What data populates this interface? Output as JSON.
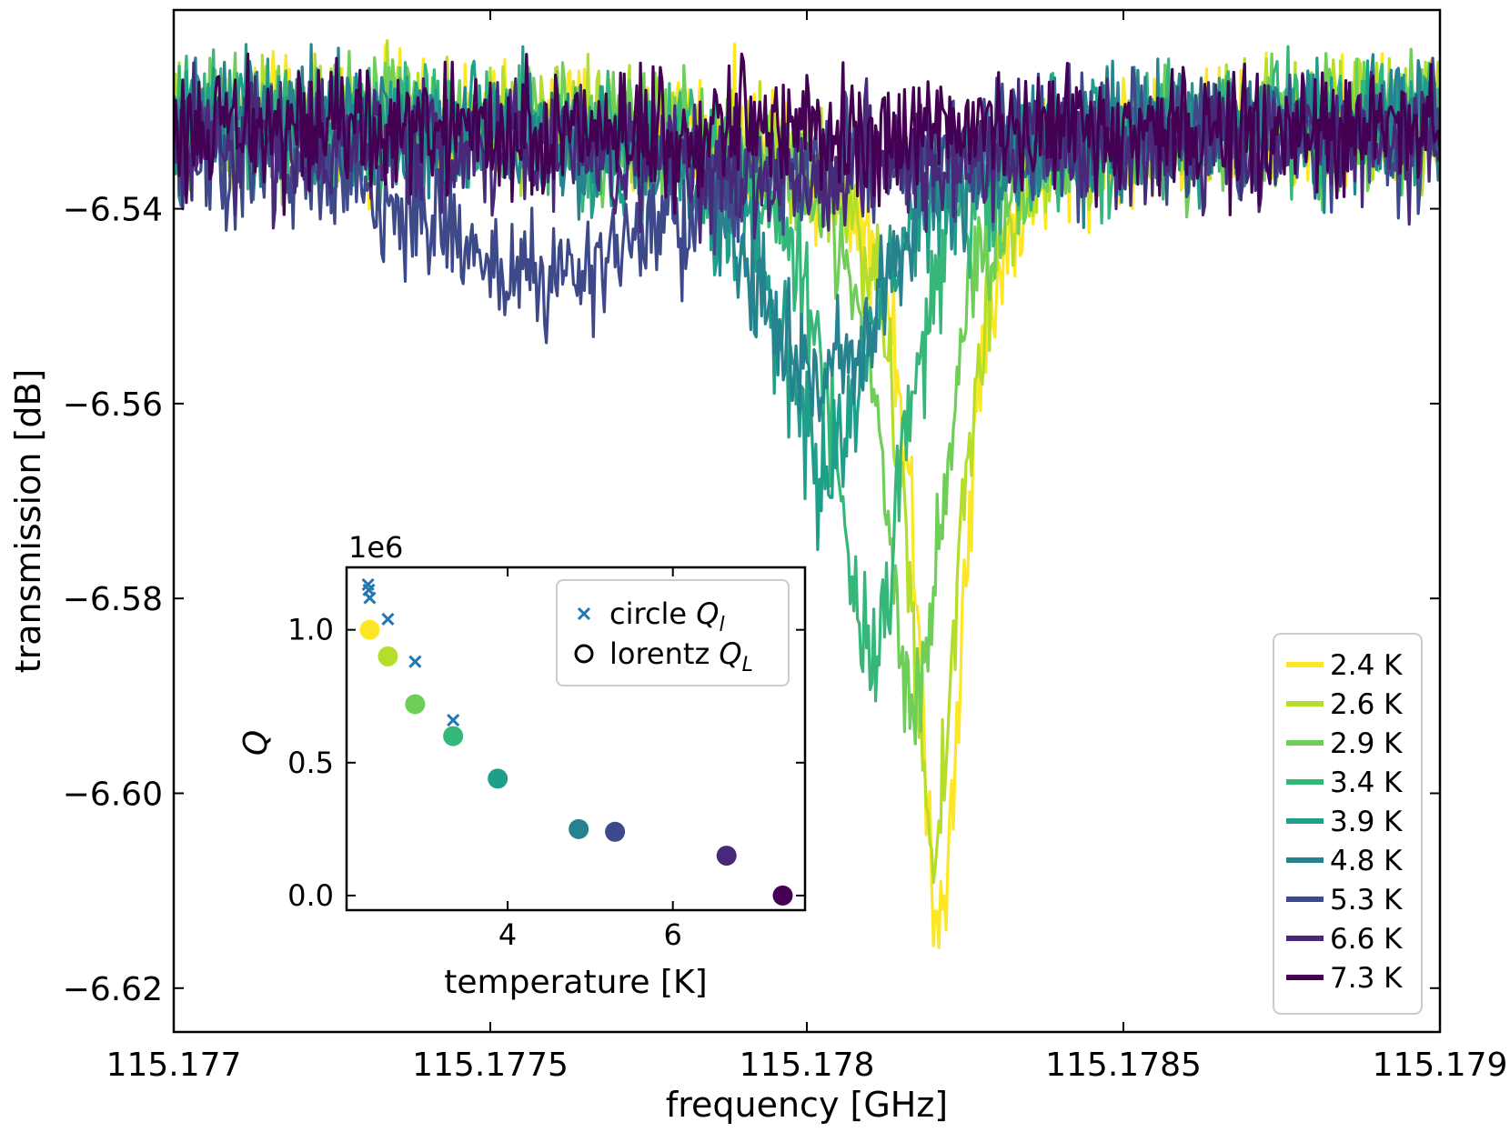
{
  "chart_data": {
    "main": {
      "type": "line",
      "title": "",
      "xlabel": "frequency [GHz]",
      "ylabel": "transmission [dB]",
      "xlim": [
        115.177,
        115.179
      ],
      "ylim": [
        -6.6245,
        -6.5196
      ],
      "xticks": [
        115.177,
        115.1775,
        115.178,
        115.1785,
        115.179
      ],
      "xtick_labels": [
        "115.177",
        "115.1775",
        "115.178",
        "115.1785",
        "115.179"
      ],
      "yticks": [
        -6.54,
        -6.56,
        -6.58,
        -6.6,
        -6.62
      ],
      "ytick_labels": [
        "−6.54",
        "−6.56",
        "−6.58",
        "−6.60",
        "−6.62"
      ],
      "legend_position": "lower-right",
      "series": [
        {
          "name": "2.4 K",
          "color": "#fde725",
          "f0": 115.17821,
          "depth": 0.082,
          "width": 9e-05,
          "baseline": -6.531,
          "noise": 0.005
        },
        {
          "name": "2.6 K",
          "color": "#b5de2b",
          "f0": 115.1782,
          "depth": 0.075,
          "width": 0.0001,
          "baseline": -6.531,
          "noise": 0.005
        },
        {
          "name": "2.9 K",
          "color": "#6ece58",
          "f0": 115.17817,
          "depth": 0.06,
          "width": 0.00012,
          "baseline": -6.531,
          "noise": 0.005
        },
        {
          "name": "3.4 K",
          "color": "#35b779",
          "f0": 115.1781,
          "depth": 0.054,
          "width": 0.00014,
          "baseline": -6.531,
          "noise": 0.005
        },
        {
          "name": "3.9 K",
          "color": "#1f9e89",
          "f0": 115.17803,
          "depth": 0.036,
          "width": 0.00018,
          "baseline": -6.531,
          "noise": 0.005
        },
        {
          "name": "4.8 K",
          "color": "#26828e",
          "f0": 115.17802,
          "depth": 0.027,
          "width": 0.00024,
          "baseline": -6.531,
          "noise": 0.005
        },
        {
          "name": "5.3 K",
          "color": "#3e4989",
          "f0": 115.1776,
          "depth": 0.015,
          "width": 0.0005,
          "baseline": -6.532,
          "noise": 0.005
        },
        {
          "name": "6.6 K",
          "color": "#482878",
          "f0": 115.178,
          "depth": 0.004,
          "width": 0.0004,
          "baseline": -6.533,
          "noise": 0.005
        },
        {
          "name": "7.3 K",
          "color": "#440154",
          "f0": 115.178,
          "depth": 0.0,
          "width": 0.0004,
          "baseline": -6.532,
          "noise": 0.005
        }
      ]
    },
    "inset": {
      "type": "scatter",
      "xlabel": "temperature [K]",
      "ylabel": "Q",
      "offset_text": "1e6",
      "xlim": [
        2.05,
        7.6
      ],
      "ylim": [
        -0.055,
        1.235
      ],
      "xticks": [
        4,
        6
      ],
      "xtick_labels": [
        "4",
        "6"
      ],
      "yticks": [
        0.0,
        0.5,
        1.0
      ],
      "ytick_labels": [
        "0.0",
        "0.5",
        "1.0"
      ],
      "legend_position": "upper-right",
      "legend": [
        {
          "marker": "x",
          "label": "circle",
          "subscript": "l"
        },
        {
          "marker": "o",
          "label": "lorentz",
          "subscript": "L"
        }
      ],
      "circle_Ql": {
        "color": "#1f77b4",
        "x": [
          2.31,
          2.32,
          2.33,
          2.55,
          2.88,
          3.34
        ],
        "y": [
          1.17,
          1.15,
          1.12,
          1.04,
          0.88,
          0.66
        ]
      },
      "lorentz_QL": {
        "x": [
          2.33,
          2.55,
          2.88,
          3.34,
          3.88,
          4.86,
          5.3,
          6.65,
          7.33
        ],
        "y": [
          1.0,
          0.9,
          0.72,
          0.6,
          0.44,
          0.25,
          0.24,
          0.15,
          0.0
        ],
        "colors": [
          "#fde725",
          "#b5de2b",
          "#6ece58",
          "#35b779",
          "#1f9e89",
          "#26828e",
          "#3e4989",
          "#482878",
          "#440154"
        ]
      }
    }
  }
}
